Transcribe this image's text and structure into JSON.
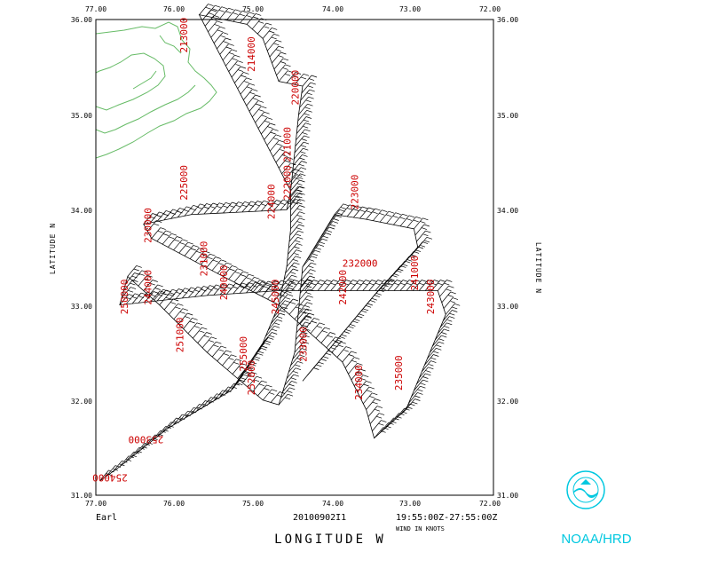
{
  "x_axis": {
    "ticks": [
      "77.00",
      "76.00",
      "75.00",
      "74.00",
      "73.00",
      "72.00"
    ],
    "title": "LONGITUDE   W"
  },
  "y_axis": {
    "ticks": [
      "36.00",
      "35.00",
      "34.00",
      "33.00",
      "32.00",
      "31.00"
    ],
    "title_left": "LATITUDE   N",
    "title_right": "LATITUDE   N"
  },
  "storm_name": "Earl",
  "flight_id": "20100902I1",
  "time_range": "19:55:00Z-27:55:00Z",
  "units_label": "WIND IN KNOTS",
  "agency": "NOAA/HRD",
  "colors": {
    "frame": "#000000",
    "coast": "#66bb66",
    "time_labels": "#cc0000",
    "logo": "#00c8e0"
  },
  "map_data": {
    "bounds": {
      "lon_west": -77.0,
      "lon_east": -72.0,
      "lat_south": 31.0,
      "lat_north": 36.0
    },
    "track": [
      [
        -76.95,
        31.15
      ],
      [
        -76.7,
        31.3
      ],
      [
        -76.1,
        31.7
      ],
      [
        -75.3,
        32.1
      ],
      [
        -74.9,
        32.6
      ],
      [
        -74.7,
        33.0
      ],
      [
        -74.6,
        33.4
      ],
      [
        -74.55,
        33.8
      ],
      [
        -74.55,
        34.2
      ],
      [
        -74.45,
        35.0
      ],
      [
        -74.4,
        35.3
      ],
      [
        -74.7,
        35.35
      ],
      [
        -74.9,
        35.8
      ],
      [
        -75.1,
        35.95
      ],
      [
        -75.7,
        36.05
      ],
      [
        -74.55,
        34.2
      ],
      [
        -74.6,
        34.0
      ],
      [
        -75.8,
        33.95
      ],
      [
        -76.4,
        33.85
      ],
      [
        -76.3,
        33.7
      ],
      [
        -75.4,
        33.3
      ],
      [
        -74.7,
        33.0
      ],
      [
        -74.3,
        32.7
      ],
      [
        -73.9,
        32.4
      ],
      [
        -73.6,
        31.9
      ],
      [
        -73.5,
        31.6
      ],
      [
        -73.1,
        31.9
      ],
      [
        -72.9,
        32.3
      ],
      [
        -72.6,
        32.9
      ],
      [
        -72.7,
        33.15
      ],
      [
        -73.8,
        33.15
      ],
      [
        -74.7,
        33.15
      ],
      [
        -75.6,
        33.1
      ],
      [
        -76.7,
        33.0
      ],
      [
        -76.6,
        33.3
      ],
      [
        -76.2,
        33.0
      ],
      [
        -75.6,
        32.5
      ],
      [
        -74.9,
        32.0
      ],
      [
        -74.7,
        31.95
      ],
      [
        -74.5,
        32.5
      ],
      [
        -74.4,
        33.4
      ],
      [
        -74.0,
        33.95
      ],
      [
        -73.6,
        33.9
      ],
      [
        -73.0,
        33.8
      ],
      [
        -72.95,
        33.6
      ],
      [
        -73.5,
        33.1
      ],
      [
        -74.1,
        32.5
      ],
      [
        -74.4,
        32.2
      ]
    ],
    "time_labels": [
      {
        "text": "213000",
        "lon": -75.85,
        "lat": 35.65,
        "rot": -90
      },
      {
        "text": "214000",
        "lon": -75.0,
        "lat": 35.45,
        "rot": -90
      },
      {
        "text": "220000",
        "lon": -74.45,
        "lat": 35.1,
        "rot": -90
      },
      {
        "text": "221000",
        "lon": -74.55,
        "lat": 34.5,
        "rot": -90
      },
      {
        "text": "222000",
        "lon": -74.55,
        "lat": 34.1,
        "rot": -90
      },
      {
        "text": "223000",
        "lon": -73.7,
        "lat": 34.0,
        "rot": -90
      },
      {
        "text": "224000",
        "lon": -74.75,
        "lat": 33.9,
        "rot": -90
      },
      {
        "text": "225000",
        "lon": -75.85,
        "lat": 34.1,
        "rot": -90
      },
      {
        "text": "230000",
        "lon": -76.3,
        "lat": 33.65,
        "rot": -90
      },
      {
        "text": "231000",
        "lon": -75.6,
        "lat": 33.3,
        "rot": -90
      },
      {
        "text": "232000",
        "lon": -73.9,
        "lat": 33.4,
        "rot": 0
      },
      {
        "text": "233000",
        "lon": -74.35,
        "lat": 32.4,
        "rot": -90
      },
      {
        "text": "234000",
        "lon": -73.65,
        "lat": 32.0,
        "rot": -90
      },
      {
        "text": "235000",
        "lon": -73.15,
        "lat": 32.1,
        "rot": -90
      },
      {
        "text": "240000",
        "lon": -75.35,
        "lat": 33.05,
        "rot": -90
      },
      {
        "text": "241000",
        "lon": -72.95,
        "lat": 33.15,
        "rot": -90
      },
      {
        "text": "242000",
        "lon": -73.85,
        "lat": 33.0,
        "rot": -90
      },
      {
        "text": "243000",
        "lon": -72.75,
        "lat": 32.9,
        "rot": -90
      },
      {
        "text": "244000",
        "lon": -76.3,
        "lat": 33.0,
        "rot": -90
      },
      {
        "text": "245000",
        "lon": -74.7,
        "lat": 32.9,
        "rot": -90
      },
      {
        "text": "250000",
        "lon": -76.6,
        "lat": 32.9,
        "rot": -90
      },
      {
        "text": "251000",
        "lon": -75.9,
        "lat": 32.5,
        "rot": -90
      },
      {
        "text": "252000",
        "lon": -75.0,
        "lat": 32.05,
        "rot": -90
      },
      {
        "text": "253000",
        "lon": -76.15,
        "lat": 31.62,
        "rot": 180
      },
      {
        "text": "254000",
        "lon": -76.6,
        "lat": 31.22,
        "rot": 180
      },
      {
        "text": "255000",
        "lon": -75.1,
        "lat": 32.3,
        "rot": -90
      }
    ]
  }
}
